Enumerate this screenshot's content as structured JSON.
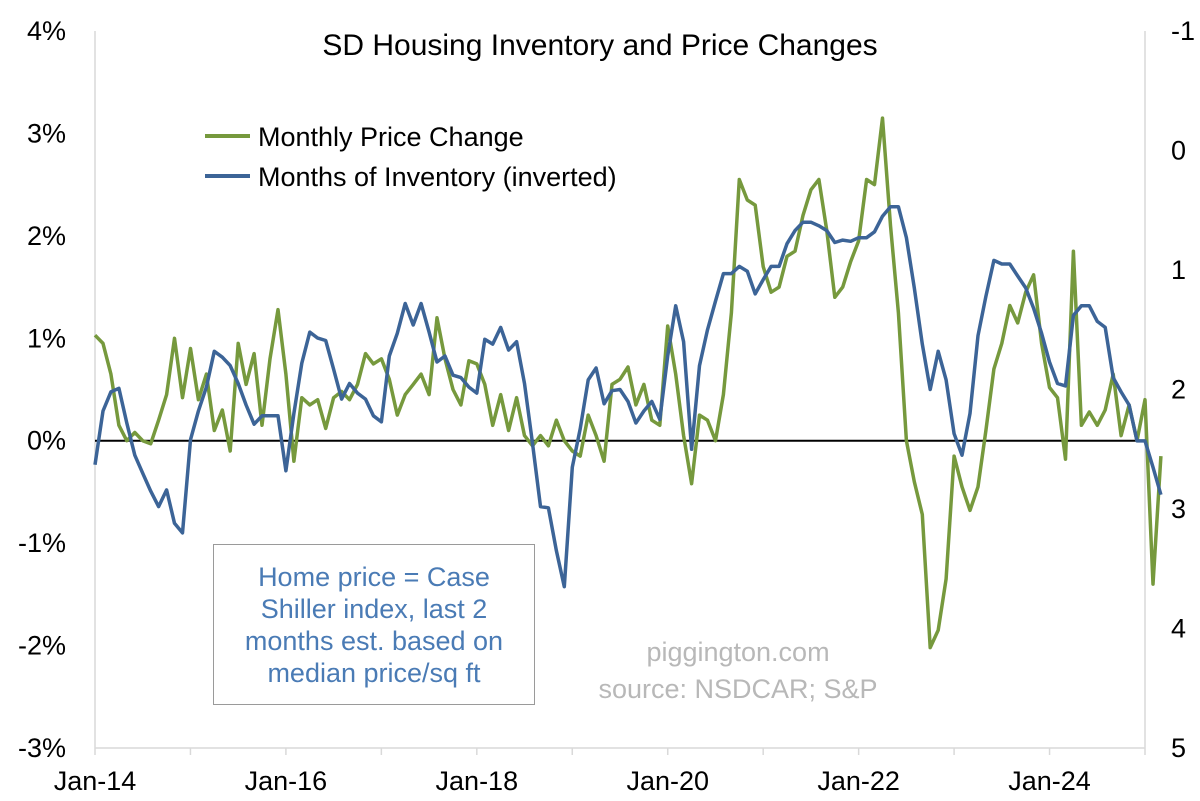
{
  "chart_data": {
    "type": "line",
    "title": "SD Housing Inventory and Price Changes",
    "x_ticks": [
      "Jan-14",
      "Jan-16",
      "Jan-18",
      "Jan-20",
      "Jan-22",
      "Jan-24"
    ],
    "x_start": "2014-01",
    "x_end": "2024-12",
    "y_left": {
      "ticks": [
        "4%",
        "3%",
        "2%",
        "1%",
        "0%",
        "-1%",
        "-2%",
        "-3%"
      ],
      "ylim": [
        -3,
        4
      ]
    },
    "y_right": {
      "ticks": [
        "-1",
        "0",
        "1",
        "2",
        "3",
        "4",
        "5"
      ],
      "ylim": [
        -1,
        5
      ],
      "inverted": true
    },
    "colors": {
      "price": "#76993d",
      "inventory": "#3c6497",
      "zero_line": "#000000",
      "axis": "#d9d9d9"
    },
    "series": [
      {
        "name": "Monthly Price Change",
        "axis": "left",
        "unit": "%",
        "points": [
          [
            "2014-01",
            1.03
          ],
          [
            "2014-02",
            0.95
          ],
          [
            "2014-03",
            0.65
          ],
          [
            "2014-04",
            0.15
          ],
          [
            "2014-05",
            0.0
          ],
          [
            "2014-06",
            0.08
          ],
          [
            "2014-07",
            0.0
          ],
          [
            "2014-08",
            -0.03
          ],
          [
            "2014-09",
            0.2
          ],
          [
            "2014-10",
            0.45
          ],
          [
            "2014-11",
            1.0
          ],
          [
            "2014-12",
            0.42
          ],
          [
            "2015-01",
            0.9
          ],
          [
            "2015-02",
            0.4
          ],
          [
            "2015-03",
            0.65
          ],
          [
            "2015-04",
            0.1
          ],
          [
            "2015-05",
            0.3
          ],
          [
            "2015-06",
            -0.1
          ],
          [
            "2015-07",
            0.95
          ],
          [
            "2015-08",
            0.55
          ],
          [
            "2015-09",
            0.85
          ],
          [
            "2015-10",
            0.15
          ],
          [
            "2015-11",
            0.8
          ],
          [
            "2015-12",
            1.28
          ],
          [
            "2016-01",
            0.65
          ],
          [
            "2016-02",
            -0.2
          ],
          [
            "2016-03",
            0.42
          ],
          [
            "2016-04",
            0.35
          ],
          [
            "2016-05",
            0.4
          ],
          [
            "2016-06",
            0.12
          ],
          [
            "2016-07",
            0.42
          ],
          [
            "2016-08",
            0.48
          ],
          [
            "2016-09",
            0.4
          ],
          [
            "2016-10",
            0.55
          ],
          [
            "2016-11",
            0.85
          ],
          [
            "2016-12",
            0.75
          ],
          [
            "2017-01",
            0.8
          ],
          [
            "2017-02",
            0.6
          ],
          [
            "2017-03",
            0.25
          ],
          [
            "2017-04",
            0.45
          ],
          [
            "2017-05",
            0.55
          ],
          [
            "2017-06",
            0.65
          ],
          [
            "2017-07",
            0.45
          ],
          [
            "2017-08",
            1.2
          ],
          [
            "2017-09",
            0.8
          ],
          [
            "2017-10",
            0.5
          ],
          [
            "2017-11",
            0.35
          ],
          [
            "2017-12",
            0.78
          ],
          [
            "2018-01",
            0.75
          ],
          [
            "2018-02",
            0.55
          ],
          [
            "2018-03",
            0.15
          ],
          [
            "2018-04",
            0.45
          ],
          [
            "2018-05",
            0.1
          ],
          [
            "2018-06",
            0.42
          ],
          [
            "2018-07",
            0.05
          ],
          [
            "2018-08",
            -0.05
          ],
          [
            "2018-09",
            0.05
          ],
          [
            "2018-10",
            -0.05
          ],
          [
            "2018-11",
            0.2
          ],
          [
            "2018-12",
            0.0
          ],
          [
            "2019-01",
            -0.1
          ],
          [
            "2019-02",
            -0.15
          ],
          [
            "2019-03",
            0.25
          ],
          [
            "2019-04",
            0.05
          ],
          [
            "2019-05",
            -0.2
          ],
          [
            "2019-06",
            0.55
          ],
          [
            "2019-07",
            0.6
          ],
          [
            "2019-08",
            0.72
          ],
          [
            "2019-09",
            0.35
          ],
          [
            "2019-10",
            0.55
          ],
          [
            "2019-11",
            0.2
          ],
          [
            "2019-12",
            0.15
          ],
          [
            "2020-01",
            1.12
          ],
          [
            "2020-02",
            0.65
          ],
          [
            "2020-03",
            0.05
          ],
          [
            "2020-04",
            -0.42
          ],
          [
            "2020-05",
            0.25
          ],
          [
            "2020-06",
            0.2
          ],
          [
            "2020-07",
            0.0
          ],
          [
            "2020-08",
            0.45
          ],
          [
            "2020-09",
            1.25
          ],
          [
            "2020-10",
            2.55
          ],
          [
            "2020-11",
            2.35
          ],
          [
            "2020-12",
            2.3
          ],
          [
            "2021-01",
            1.7
          ],
          [
            "2021-02",
            1.45
          ],
          [
            "2021-03",
            1.5
          ],
          [
            "2021-04",
            1.8
          ],
          [
            "2021-05",
            1.85
          ],
          [
            "2021-06",
            2.2
          ],
          [
            "2021-07",
            2.45
          ],
          [
            "2021-08",
            2.55
          ],
          [
            "2021-09",
            2.05
          ],
          [
            "2021-10",
            1.4
          ],
          [
            "2021-11",
            1.5
          ],
          [
            "2021-12",
            1.75
          ],
          [
            "2022-01",
            1.95
          ],
          [
            "2022-02",
            2.55
          ],
          [
            "2022-03",
            2.5
          ],
          [
            "2022-04",
            3.15
          ],
          [
            "2022-05",
            2.1
          ],
          [
            "2022-06",
            1.25
          ],
          [
            "2022-07",
            0.0
          ],
          [
            "2022-08",
            -0.4
          ],
          [
            "2022-09",
            -0.72
          ],
          [
            "2022-10",
            -2.02
          ],
          [
            "2022-11",
            -1.85
          ],
          [
            "2022-12",
            -1.35
          ],
          [
            "2023-01",
            -0.15
          ],
          [
            "2023-02",
            -0.45
          ],
          [
            "2023-03",
            -0.68
          ],
          [
            "2023-04",
            -0.45
          ],
          [
            "2023-05",
            0.1
          ],
          [
            "2023-06",
            0.7
          ],
          [
            "2023-07",
            0.95
          ],
          [
            "2023-08",
            1.32
          ],
          [
            "2023-09",
            1.15
          ],
          [
            "2023-10",
            1.45
          ],
          [
            "2023-11",
            1.62
          ],
          [
            "2023-12",
            0.95
          ],
          [
            "2024-01",
            0.52
          ],
          [
            "2024-02",
            0.42
          ],
          [
            "2024-03",
            -0.18
          ],
          [
            "2024-04",
            1.85
          ],
          [
            "2024-05",
            0.15
          ],
          [
            "2024-06",
            0.28
          ],
          [
            "2024-07",
            0.15
          ],
          [
            "2024-08",
            0.3
          ],
          [
            "2024-09",
            0.65
          ],
          [
            "2024-10",
            0.05
          ],
          [
            "2024-11",
            0.35
          ],
          [
            "2024-12",
            0.0
          ],
          [
            "2025-01",
            0.4
          ],
          [
            "2025-02",
            -1.4
          ],
          [
            "2025-03",
            -0.15
          ]
        ]
      },
      {
        "name": "Months of Inventory (inverted)",
        "axis": "right",
        "unit": "months",
        "points": [
          [
            "2014-01",
            2.63
          ],
          [
            "2014-02",
            2.18
          ],
          [
            "2014-03",
            2.02
          ],
          [
            "2014-04",
            1.99
          ],
          [
            "2014-05",
            2.28
          ],
          [
            "2014-06",
            2.55
          ],
          [
            "2014-07",
            2.7
          ],
          [
            "2014-08",
            2.85
          ],
          [
            "2014-09",
            2.98
          ],
          [
            "2014-10",
            2.84
          ],
          [
            "2014-11",
            3.12
          ],
          [
            "2014-12",
            3.2
          ],
          [
            "2015-01",
            2.42
          ],
          [
            "2015-02",
            2.18
          ],
          [
            "2015-03",
            1.98
          ],
          [
            "2015-04",
            1.68
          ],
          [
            "2015-05",
            1.73
          ],
          [
            "2015-06",
            1.8
          ],
          [
            "2015-07",
            1.95
          ],
          [
            "2015-08",
            2.13
          ],
          [
            "2015-09",
            2.29
          ],
          [
            "2015-10",
            2.22
          ],
          [
            "2015-11",
            2.22
          ],
          [
            "2015-12",
            2.22
          ],
          [
            "2016-01",
            2.68
          ],
          [
            "2016-02",
            2.2
          ],
          [
            "2016-03",
            1.78
          ],
          [
            "2016-04",
            1.52
          ],
          [
            "2016-05",
            1.57
          ],
          [
            "2016-06",
            1.59
          ],
          [
            "2016-07",
            1.83
          ],
          [
            "2016-08",
            2.08
          ],
          [
            "2016-09",
            1.95
          ],
          [
            "2016-10",
            2.03
          ],
          [
            "2016-11",
            2.08
          ],
          [
            "2016-12",
            2.22
          ],
          [
            "2017-01",
            2.27
          ],
          [
            "2017-02",
            1.72
          ],
          [
            "2017-03",
            1.53
          ],
          [
            "2017-04",
            1.28
          ],
          [
            "2017-05",
            1.46
          ],
          [
            "2017-06",
            1.28
          ],
          [
            "2017-07",
            1.52
          ],
          [
            "2017-08",
            1.77
          ],
          [
            "2017-09",
            1.72
          ],
          [
            "2017-10",
            1.88
          ],
          [
            "2017-11",
            1.9
          ],
          [
            "2017-12",
            1.98
          ],
          [
            "2018-01",
            2.03
          ],
          [
            "2018-02",
            1.58
          ],
          [
            "2018-03",
            1.62
          ],
          [
            "2018-04",
            1.48
          ],
          [
            "2018-05",
            1.67
          ],
          [
            "2018-06",
            1.6
          ],
          [
            "2018-07",
            1.95
          ],
          [
            "2018-08",
            2.45
          ],
          [
            "2018-09",
            2.98
          ],
          [
            "2018-10",
            2.99
          ],
          [
            "2018-11",
            3.35
          ],
          [
            "2018-12",
            3.65
          ],
          [
            "2019-01",
            2.65
          ],
          [
            "2019-02",
            2.33
          ],
          [
            "2019-03",
            1.92
          ],
          [
            "2019-04",
            1.82
          ],
          [
            "2019-05",
            2.12
          ],
          [
            "2019-06",
            2.01
          ],
          [
            "2019-07",
            2.0
          ],
          [
            "2019-08",
            2.1
          ],
          [
            "2019-09",
            2.28
          ],
          [
            "2019-10",
            2.18
          ],
          [
            "2019-11",
            2.1
          ],
          [
            "2019-12",
            2.25
          ],
          [
            "2020-01",
            1.72
          ],
          [
            "2020-02",
            1.3
          ],
          [
            "2020-03",
            1.6
          ],
          [
            "2020-04",
            2.5
          ],
          [
            "2020-05",
            1.8
          ],
          [
            "2020-06",
            1.5
          ],
          [
            "2020-07",
            1.26
          ],
          [
            "2020-08",
            1.03
          ],
          [
            "2020-09",
            1.03
          ],
          [
            "2020-10",
            0.97
          ],
          [
            "2020-11",
            1.01
          ],
          [
            "2020-12",
            1.2
          ],
          [
            "2021-01",
            1.08
          ],
          [
            "2021-02",
            0.97
          ],
          [
            "2021-03",
            0.97
          ],
          [
            "2021-04",
            0.78
          ],
          [
            "2021-05",
            0.67
          ],
          [
            "2021-06",
            0.6
          ],
          [
            "2021-07",
            0.6
          ],
          [
            "2021-08",
            0.63
          ],
          [
            "2021-09",
            0.67
          ],
          [
            "2021-10",
            0.77
          ],
          [
            "2021-11",
            0.75
          ],
          [
            "2021-12",
            0.76
          ],
          [
            "2022-01",
            0.73
          ],
          [
            "2022-02",
            0.73
          ],
          [
            "2022-03",
            0.68
          ],
          [
            "2022-04",
            0.55
          ],
          [
            "2022-05",
            0.47
          ],
          [
            "2022-06",
            0.47
          ],
          [
            "2022-07",
            0.73
          ],
          [
            "2022-08",
            1.15
          ],
          [
            "2022-09",
            1.62
          ],
          [
            "2022-10",
            2.0
          ],
          [
            "2022-11",
            1.68
          ],
          [
            "2022-12",
            1.92
          ],
          [
            "2023-01",
            2.37
          ],
          [
            "2023-02",
            2.55
          ],
          [
            "2023-03",
            2.2
          ],
          [
            "2023-04",
            1.55
          ],
          [
            "2023-05",
            1.22
          ],
          [
            "2023-06",
            0.92
          ],
          [
            "2023-07",
            0.95
          ],
          [
            "2023-08",
            0.95
          ],
          [
            "2023-09",
            1.05
          ],
          [
            "2023-10",
            1.15
          ],
          [
            "2023-11",
            1.32
          ],
          [
            "2023-12",
            1.53
          ],
          [
            "2024-01",
            1.77
          ],
          [
            "2024-02",
            1.95
          ],
          [
            "2024-03",
            1.97
          ],
          [
            "2024-04",
            1.38
          ],
          [
            "2024-05",
            1.3
          ],
          [
            "2024-06",
            1.3
          ],
          [
            "2024-07",
            1.43
          ],
          [
            "2024-08",
            1.48
          ],
          [
            "2024-09",
            1.9
          ],
          [
            "2024-10",
            2.02
          ],
          [
            "2024-11",
            2.13
          ],
          [
            "2024-12",
            2.43
          ],
          [
            "2025-01",
            2.43
          ],
          [
            "2025-02",
            2.65
          ],
          [
            "2025-03",
            2.88
          ]
        ]
      }
    ]
  },
  "legend": {
    "price_label": "Monthly Price Change",
    "inventory_label": "Months of Inventory (inverted)"
  },
  "annotations": {
    "note_lines": [
      "Home price = Case",
      "Shiller index, last 2",
      "months est. based on",
      "median price/sq ft"
    ],
    "watermark_site": "piggington.com",
    "watermark_source": "source: NSDCAR; S&P"
  }
}
